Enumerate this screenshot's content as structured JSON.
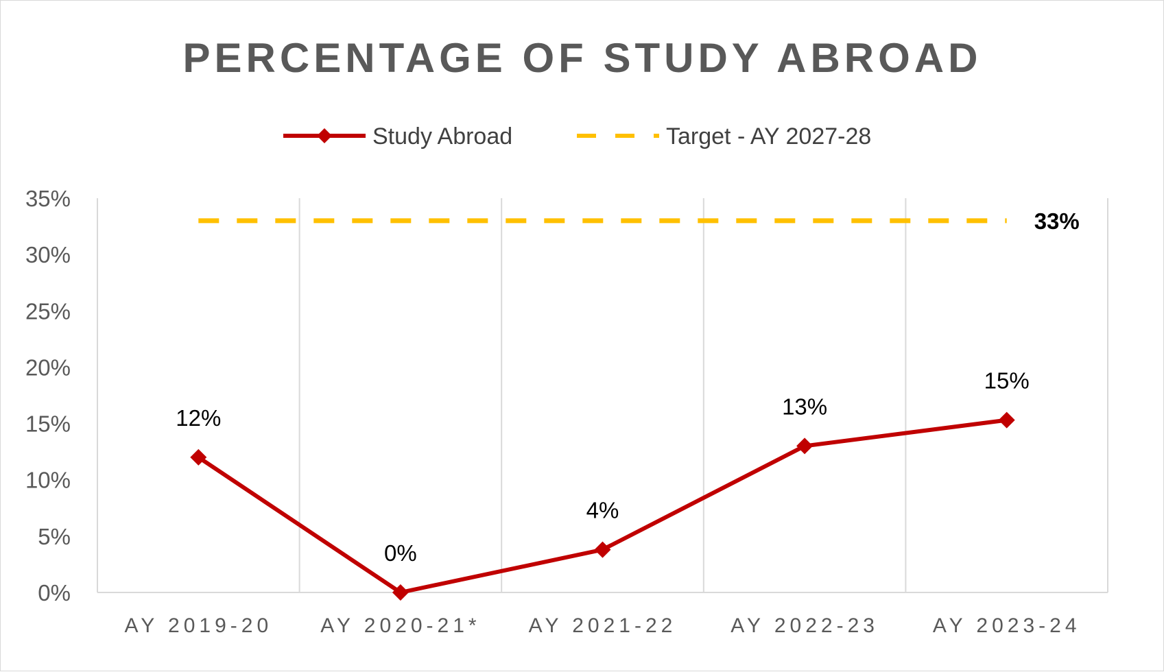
{
  "chart_data": {
    "type": "line",
    "title": "PERCENTAGE OF STUDY ABROAD",
    "categories": [
      "AY 2019-20",
      "AY 2020-21*",
      "AY 2021-22",
      "AY 2022-23",
      "AY 2023-24"
    ],
    "series": [
      {
        "name": "Study Abroad",
        "values": [
          12,
          0,
          3.8,
          13,
          15.3
        ],
        "labels": [
          "12%",
          "0%",
          "4%",
          "13%",
          "15%"
        ],
        "color": "#c00000",
        "marker": "diamond"
      },
      {
        "name": "Target - AY 2027-28",
        "value": 33,
        "label": "33%",
        "color": "#ffc000",
        "style": "dashed"
      }
    ],
    "yticks": [
      "0%",
      "5%",
      "10%",
      "15%",
      "20%",
      "25%",
      "30%",
      "35%"
    ],
    "ylim": [
      0,
      35
    ],
    "grid": "vertical",
    "legend": "top-center"
  }
}
